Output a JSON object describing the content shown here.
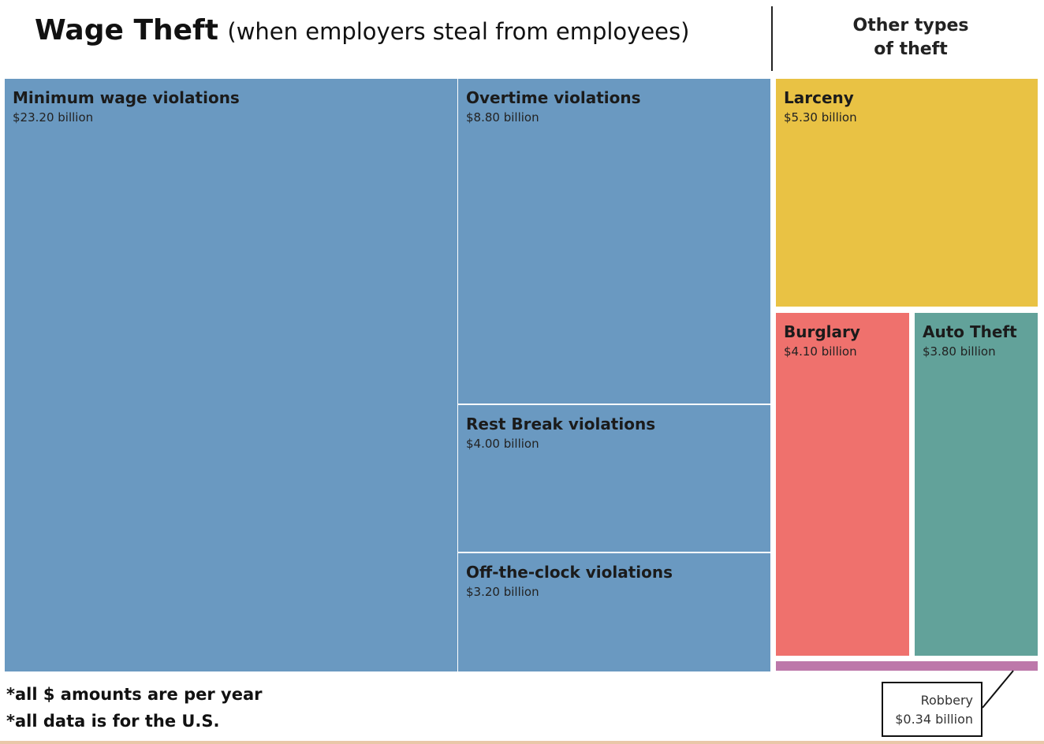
{
  "title": {
    "main": "Wage Theft",
    "sub": "(when employers steal from employees)"
  },
  "other_heading": [
    "Other types",
    "of theft"
  ],
  "notes": [
    "*all $ amounts are per year",
    "*all data is for the U.S."
  ],
  "colors": {
    "wage": "#6a99c1",
    "larceny": "#e9c244",
    "burglary": "#ef716d",
    "auto_theft": "#62a29a",
    "robbery": "#bd78aa"
  },
  "chart_data": {
    "type": "treemap",
    "title": "Wage Theft (when employers steal from employees)",
    "unit": "billion USD per year",
    "groups": [
      {
        "name": "Wage Theft",
        "items": [
          {
            "label": "Minimum wage violations",
            "value": 23.2,
            "value_text": "$23.20 billion"
          },
          {
            "label": "Overtime violations",
            "value": 8.8,
            "value_text": "$8.80 billion"
          },
          {
            "label": "Rest Break violations",
            "value": 4.0,
            "value_text": "$4.00 billion"
          },
          {
            "label": "Off-the-clock violations",
            "value": 3.2,
            "value_text": "$3.20 billion"
          }
        ]
      },
      {
        "name": "Other types of theft",
        "items": [
          {
            "label": "Larceny",
            "value": 5.3,
            "value_text": "$5.30 billion"
          },
          {
            "label": "Burglary",
            "value": 4.1,
            "value_text": "$4.10 billion"
          },
          {
            "label": "Auto Theft",
            "value": 3.8,
            "value_text": "$3.80 billion"
          },
          {
            "label": "Robbery",
            "value": 0.34,
            "value_text": "$0.34 billion"
          }
        ]
      }
    ]
  }
}
